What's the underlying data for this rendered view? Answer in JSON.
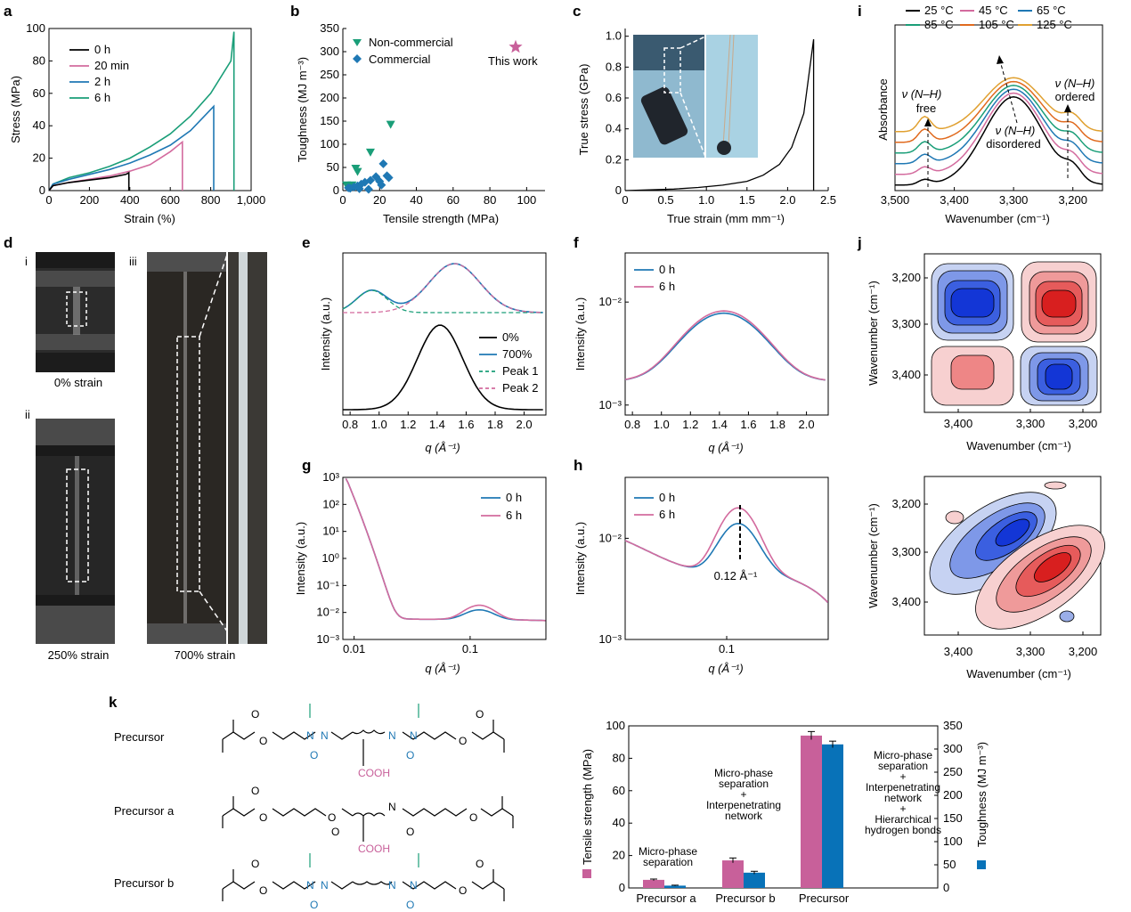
{
  "panel_labels": {
    "a": "a",
    "b": "b",
    "c": "c",
    "d": "d",
    "e": "e",
    "f": "f",
    "g": "g",
    "h": "h",
    "i": "i",
    "j": "j",
    "k": "k"
  },
  "colors": {
    "black": "#000000",
    "pink": "#d36b9e",
    "blue": "#1f78b4",
    "green": "#1a9e78",
    "orange": "#e0a030",
    "red": "#e06a1e",
    "mag": "#c8609a",
    "tough_blue": "#0872b8"
  },
  "chart_data": [
    {
      "id": "a",
      "type": "line",
      "xlabel": "Strain (%)",
      "ylabel": "Stress (MPa)",
      "xlim": [
        0,
        1000
      ],
      "ylim": [
        0,
        100
      ],
      "xticks": [
        "0",
        "200",
        "400",
        "600",
        "800",
        "1,000"
      ],
      "yticks": [
        "0",
        "20",
        "40",
        "60",
        "80",
        "100"
      ],
      "series": [
        {
          "name": "0 h",
          "color": "#000000",
          "x": [
            0,
            20,
            100,
            200,
            300,
            380,
            395,
            395
          ],
          "y": [
            0,
            3,
            5,
            6.5,
            8,
            10,
            11,
            0
          ]
        },
        {
          "name": "20 min",
          "color": "#d36b9e",
          "x": [
            0,
            20,
            100,
            200,
            300,
            400,
            500,
            600,
            660,
            660
          ],
          "y": [
            0,
            3,
            5,
            7,
            9,
            12,
            16,
            24,
            30,
            0
          ]
        },
        {
          "name": "2 h",
          "color": "#1f78b4",
          "x": [
            0,
            20,
            100,
            200,
            300,
            400,
            500,
            600,
            700,
            815,
            815
          ],
          "y": [
            0,
            4,
            7,
            10,
            13,
            17,
            22,
            28,
            37,
            52,
            0
          ]
        },
        {
          "name": "6 h",
          "color": "#1a9e78",
          "x": [
            0,
            20,
            100,
            200,
            300,
            400,
            500,
            600,
            700,
            800,
            900,
            915,
            915
          ],
          "y": [
            0,
            4,
            8,
            11,
            15,
            20,
            27,
            35,
            46,
            60,
            80,
            98,
            0
          ]
        }
      ]
    },
    {
      "id": "b",
      "type": "scatter",
      "xlabel": "Tensile strength (MPa)",
      "ylabel": "Toughness (MJ m⁻³)",
      "xlim": [
        0,
        110
      ],
      "ylim": [
        0,
        350
      ],
      "xticks": [
        "0",
        "20",
        "40",
        "60",
        "80",
        "100"
      ],
      "yticks": [
        "0",
        "50",
        "100",
        "150",
        "200",
        "250",
        "300",
        "350"
      ],
      "series": [
        {
          "name": "Non-commercial",
          "color": "#1a9e78",
          "marker": "triangle-down",
          "x": [
            26,
            7,
            8,
            15,
            2,
            5
          ],
          "y": [
            143,
            48,
            41,
            83,
            12,
            12
          ]
        },
        {
          "name": "Commercial",
          "color": "#1f78b4",
          "marker": "diamond",
          "x": [
            22,
            18,
            20,
            24,
            15,
            12,
            10,
            8,
            6,
            4,
            3,
            9,
            14,
            21,
            25
          ],
          "y": [
            58,
            30,
            20,
            32,
            22,
            18,
            14,
            10,
            8,
            5,
            6,
            4,
            3,
            12,
            28
          ]
        },
        {
          "name": "This work",
          "color": "#c8609a",
          "marker": "star",
          "x": [
            94
          ],
          "y": [
            310
          ]
        }
      ]
    },
    {
      "id": "c",
      "type": "line",
      "xlabel": "True strain (mm mm⁻¹)",
      "ylabel": "True stress (GPa)",
      "xlim": [
        0,
        2.5
      ],
      "ylim": [
        0,
        1.05
      ],
      "xticks": [
        "0",
        "0.5",
        "1.0",
        "1.5",
        "2.0",
        "2.5"
      ],
      "yticks": [
        "0",
        "0.2",
        "0.4",
        "0.6",
        "0.8",
        "1.0"
      ],
      "series": [
        {
          "name": "true",
          "color": "#000000",
          "x": [
            0,
            0.3,
            0.6,
            0.9,
            1.2,
            1.5,
            1.7,
            1.9,
            2.05,
            2.2,
            2.32,
            2.32
          ],
          "y": [
            0,
            0.005,
            0.01,
            0.02,
            0.035,
            0.06,
            0.1,
            0.17,
            0.28,
            0.5,
            0.98,
            0
          ]
        }
      ]
    },
    {
      "id": "i",
      "type": "line",
      "xlabel": "Wavenumber (cm⁻¹)",
      "ylabel": "Absorbance",
      "xlim": [
        3500,
        3150
      ],
      "xticks": [
        "3,500",
        "3,400",
        "3,300",
        "3,200"
      ],
      "series": [
        {
          "name": "25 °C",
          "color": "#000000"
        },
        {
          "name": "45 °C",
          "color": "#d36b9e"
        },
        {
          "name": "65 °C",
          "color": "#1f78b4"
        },
        {
          "name": "85 °C",
          "color": "#1a9e78"
        },
        {
          "name": "105 °C",
          "color": "#e06a1e"
        },
        {
          "name": "125 °C",
          "color": "#e0a030"
        }
      ],
      "annotations": [
        "ν (N–H)",
        "free",
        "ν (N–H)",
        "ordered",
        "ν (N–H)",
        "disordered"
      ]
    },
    {
      "id": "e",
      "type": "line",
      "xlabel": "q (Å⁻¹)",
      "ylabel": "Intensity (a.u.)",
      "xlim": [
        0.75,
        2.15
      ],
      "xticks": [
        "0.8",
        "1.0",
        "1.2",
        "1.4",
        "1.6",
        "1.8",
        "2.0"
      ],
      "series": [
        {
          "name": "0%",
          "color": "#000000",
          "peak": 1.42
        },
        {
          "name": "700%",
          "color": "#1f78b4",
          "peak": 1.5
        },
        {
          "name": "Peak 1",
          "color": "#1a9e78",
          "peak": 0.95
        },
        {
          "name": "Peak 2",
          "color": "#d36b9e",
          "peak": 1.52
        }
      ]
    },
    {
      "id": "f",
      "type": "line",
      "xlabel": "q (Å⁻¹)",
      "ylabel": "Intensity (a.u.)",
      "xlim": [
        0.75,
        2.15
      ],
      "yscale": "log",
      "ylim": [
        0.0008,
        0.03
      ],
      "xticks": [
        "0.8",
        "1.0",
        "1.2",
        "1.4",
        "1.6",
        "1.8",
        "2.0"
      ],
      "yticks": [
        "10⁻³",
        "10⁻²"
      ],
      "series": [
        {
          "name": "0 h",
          "color": "#1f78b4",
          "peak": 1.43,
          "peak_value": 0.0078
        },
        {
          "name": "6 h",
          "color": "#d36b9e",
          "peak": 1.43,
          "peak_value": 0.0082
        }
      ]
    },
    {
      "id": "g",
      "type": "line",
      "xlabel": "q (Å⁻¹)",
      "ylabel": "Intensity (a.u.)",
      "xscale": "log",
      "yscale": "log",
      "xlim": [
        0.008,
        0.45
      ],
      "ylim": [
        0.001,
        1000
      ],
      "xticks": [
        "0.01",
        "0.1"
      ],
      "yticks": [
        "10⁻³",
        "10⁻²",
        "10⁻¹",
        "10⁰",
        "10¹",
        "10²",
        "10³"
      ],
      "series": [
        {
          "name": "0 h",
          "color": "#1f78b4",
          "peak": 0.12,
          "peak_value": 0.012
        },
        {
          "name": "6 h",
          "color": "#d36b9e",
          "peak": 0.12,
          "peak_value": 0.018
        }
      ]
    },
    {
      "id": "h",
      "type": "line",
      "xlabel": "q (Å⁻¹)",
      "ylabel": "Intensity (a.u.)",
      "xscale": "log",
      "yscale": "log",
      "xlim": [
        0.02,
        0.5
      ],
      "ylim": [
        0.001,
        0.04
      ],
      "xticks": [
        "0.1"
      ],
      "yticks": [
        "10⁻³",
        "10⁻²"
      ],
      "series": [
        {
          "name": "0 h",
          "color": "#1f78b4",
          "peak": 0.12,
          "peak_value": 0.014
        },
        {
          "name": "6 h",
          "color": "#d36b9e",
          "peak": 0.12,
          "peak_value": 0.02
        }
      ],
      "annotation": "0.12 Å⁻¹"
    },
    {
      "id": "j1",
      "type": "heatmap",
      "xlabel": "Wavenumber (cm⁻¹)",
      "ylabel": "Wavenumber (cm⁻¹)",
      "xticks": [
        "3,400",
        "3,300",
        "3,200"
      ],
      "yticks": [
        "3,200",
        "3,300",
        "3,400"
      ]
    },
    {
      "id": "j2",
      "type": "heatmap",
      "xlabel": "Wavenumber (cm⁻¹)",
      "ylabel": "Wavenumber (cm⁻¹)",
      "xticks": [
        "3,400",
        "3,300",
        "3,200"
      ],
      "yticks": [
        "3,200",
        "3,300",
        "3,400"
      ]
    },
    {
      "id": "k",
      "type": "bar",
      "categories": [
        "Precursor a",
        "Precursor b",
        "Precursor"
      ],
      "ylabel": "Tensile strength (MPa)",
      "y2label": "Toughness (MJ m⁻³)",
      "ylim": [
        0,
        100
      ],
      "y2lim": [
        0,
        350
      ],
      "yticks": [
        "0",
        "20",
        "40",
        "60",
        "80",
        "100"
      ],
      "y2ticks": [
        "0",
        "50",
        "100",
        "150",
        "200",
        "250",
        "300",
        "350"
      ],
      "series": [
        {
          "name": "Tensile strength",
          "color": "#c8609a",
          "values": [
            5,
            17,
            94
          ],
          "errors": [
            0.5,
            1.5,
            2.5
          ]
        },
        {
          "name": "Toughness",
          "color": "#0872b8",
          "values": [
            5,
            33,
            310
          ],
          "errors": [
            1,
            3,
            7
          ]
        }
      ],
      "annotations": [
        [
          "Micro-phase",
          "separation"
        ],
        [
          "Micro-phase",
          "separation",
          "+",
          "Interpenetrating",
          "network"
        ],
        [
          "Micro-phase",
          "separation",
          "+",
          "Interpenetrating",
          "network",
          "+",
          "Hierarchical",
          "hydrogen bonds"
        ]
      ]
    }
  ],
  "panel_d": {
    "sub_i": "i",
    "sub_ii": "ii",
    "sub_iii": "iii",
    "cap_0": "0% strain",
    "cap_250": "250% strain",
    "cap_700": "700% strain"
  },
  "panel_k": {
    "labels": [
      "Precursor",
      "Precursor a",
      "Precursor b"
    ],
    "cooh": "COOH",
    "atoms": {
      "O": "O",
      "N": "N",
      "H": "H"
    }
  }
}
